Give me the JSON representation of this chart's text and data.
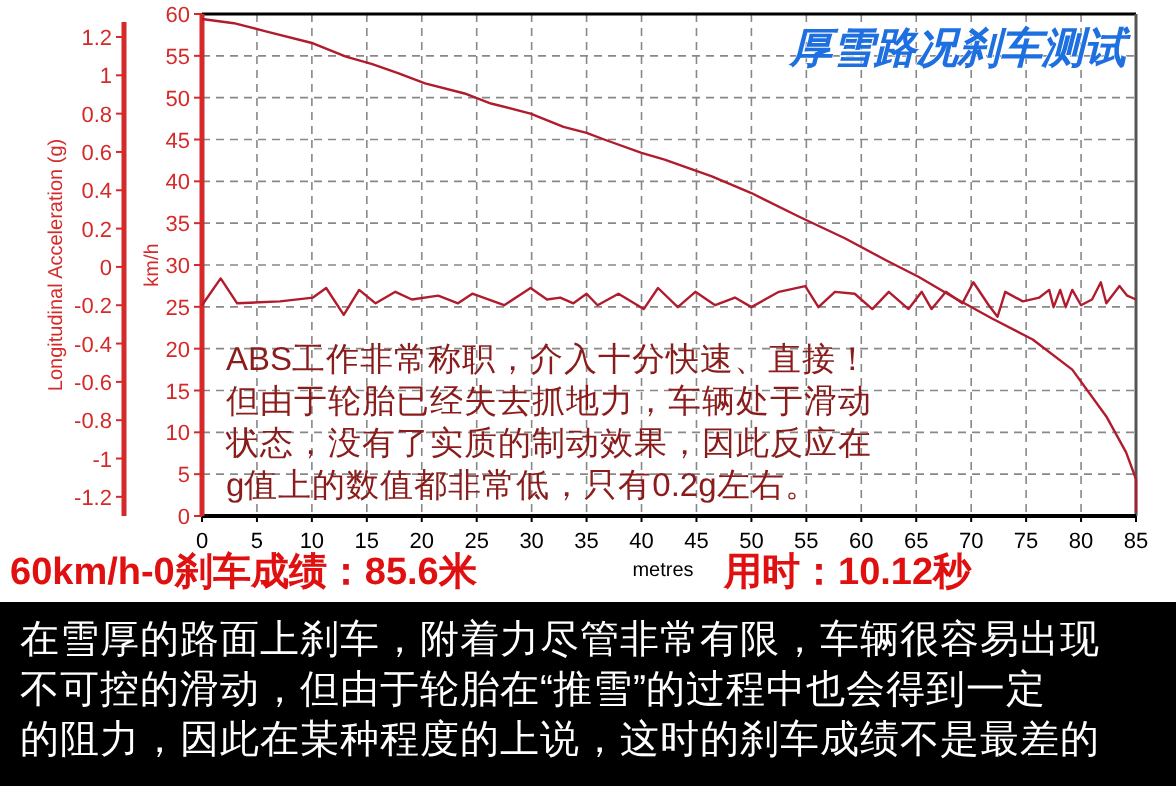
{
  "chart_data": {
    "type": "line",
    "title": "厚雪路况刹车测试",
    "xlabel": "metres",
    "ylabel": "km/h",
    "y2label": "Longitudinal Acceleration (g)",
    "xlim": [
      0,
      85
    ],
    "xticks": [
      0,
      5,
      10,
      15,
      20,
      25,
      30,
      35,
      40,
      45,
      50,
      55,
      60,
      65,
      70,
      75,
      80,
      85
    ],
    "ylim": [
      0,
      60
    ],
    "yticks": [
      0,
      5,
      10,
      15,
      20,
      25,
      30,
      35,
      40,
      45,
      50,
      55,
      60
    ],
    "y2lim": [
      -1.3,
      1.32
    ],
    "y2ticks": [
      -1.2,
      -1,
      -0.8,
      -0.6,
      -0.4,
      -0.2,
      0,
      0.2,
      0.4,
      0.6,
      0.8,
      1,
      1.2
    ],
    "grid": true,
    "series": [
      {
        "color": "#b01c2e",
        "x": [
          0,
          2.9,
          5.9,
          10.1,
          13.1,
          15.5,
          17.9,
          20.3,
          23.9,
          26.3,
          29.9,
          32.9,
          35,
          36.6,
          40,
          42.1,
          46.4,
          50,
          54.3,
          58.5,
          62.2,
          65.2,
          68.3,
          71.9,
          75.6,
          79.2,
          82.3,
          84.1,
          85,
          85
        ],
        "values": [
          59.4,
          58.9,
          57.9,
          56.5,
          54.9,
          54,
          52.9,
          51.7,
          50.5,
          49.3,
          48.1,
          46.5,
          45.8,
          45,
          43.4,
          42.6,
          40.6,
          38.6,
          35.8,
          33.2,
          30.6,
          28.6,
          26.2,
          23.6,
          21.1,
          17.5,
          11.9,
          7.6,
          4.4,
          0.4
        ]
      },
      {
        "color": "#b01c2e",
        "axis": "y2",
        "x": [
          0,
          1.7,
          3.2,
          7.1,
          10.1,
          11.3,
          12.9,
          14.3,
          15.8,
          17.6,
          19.1,
          21.5,
          23.3,
          24.6,
          27.5,
          29.9,
          31.4,
          32.6,
          33.8,
          35,
          36,
          37.9,
          40.2,
          41.5,
          43.3,
          44.9,
          46.7,
          48.5,
          50,
          52.5,
          54.9,
          56.1,
          57.6,
          59.4,
          61,
          62.5,
          64.3,
          65.5,
          66.4,
          67.7,
          69.2,
          70.2,
          71.6,
          72.4,
          73.1,
          74.7,
          76.2,
          77.1,
          77.5,
          78.1,
          78.6,
          79.2,
          80,
          81,
          81.8,
          82.3,
          83.5,
          84.2,
          85
        ],
        "values": [
          -0.2,
          -0.06,
          -0.19,
          -0.18,
          -0.16,
          -0.11,
          -0.25,
          -0.12,
          -0.19,
          -0.13,
          -0.17,
          -0.15,
          -0.19,
          -0.14,
          -0.2,
          -0.11,
          -0.17,
          -0.16,
          -0.19,
          -0.14,
          -0.2,
          -0.14,
          -0.22,
          -0.11,
          -0.21,
          -0.13,
          -0.2,
          -0.16,
          -0.21,
          -0.13,
          -0.1,
          -0.21,
          -0.13,
          -0.14,
          -0.22,
          -0.13,
          -0.22,
          -0.13,
          -0.22,
          -0.13,
          -0.19,
          -0.08,
          -0.2,
          -0.26,
          -0.13,
          -0.18,
          -0.16,
          -0.12,
          -0.21,
          -0.12,
          -0.21,
          -0.12,
          -0.2,
          -0.17,
          -0.08,
          -0.19,
          -0.1,
          -0.15,
          -0.17
        ]
      }
    ],
    "annotations": [
      "ABS工作非常称职，介入十分快速、直接！",
      "但由于轮胎已经失去抓地力，车辆处于滑动",
      "状态，没有了实质的制动效果，因此反应在",
      "g值上的数值都非常低，只有0.2g左右。",
      "60km/h-0刹车成绩：85.6米",
      "用时：10.12秒",
      "在雪厚的路面上刹车，附着力尽管非常有限，车辆很容易出现",
      "不可控的滑动，但由于轮胎在“推雪”的过程中也会得到一定",
      "的阻力，因此在某种程度的上说，这时的刹车成绩不是最差的"
    ]
  }
}
